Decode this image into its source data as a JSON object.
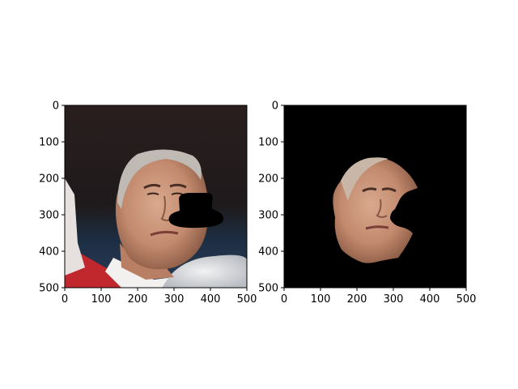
{
  "chart_data": [
    {
      "type": "image",
      "title": "",
      "xlabel": "",
      "ylabel": "",
      "xlim": [
        0,
        500
      ],
      "ylim": [
        500,
        0
      ],
      "xticks": [
        0,
        100,
        200,
        300,
        400,
        500
      ],
      "yticks": [
        0,
        100,
        200,
        300,
        400,
        500
      ],
      "grid": false,
      "content": "photo of a man's face with a black hat-shaped mask overlay"
    },
    {
      "type": "image",
      "title": "",
      "xlabel": "",
      "ylabel": "",
      "xlim": [
        0,
        500
      ],
      "ylim": [
        500,
        0
      ],
      "xticks": [
        0,
        100,
        200,
        300,
        400,
        500
      ],
      "yticks": [
        0,
        100,
        200,
        300,
        400,
        500
      ],
      "grid": false,
      "content": "segmented face region on black background"
    }
  ]
}
